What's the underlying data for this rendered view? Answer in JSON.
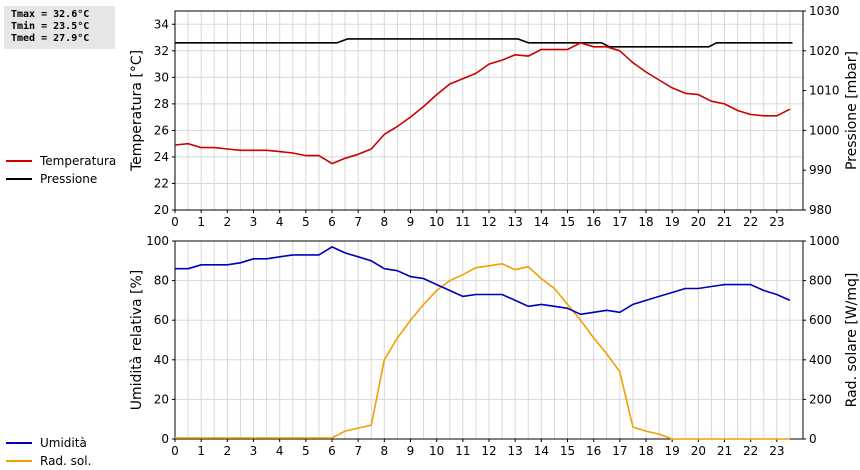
{
  "stats": {
    "tmax": "Tmax = 32.6°C",
    "tmin": "Tmin = 23.5°C",
    "tmed": "Tmed = 27.9°C"
  },
  "legend_top": [
    {
      "label": "Temperatura",
      "color": "#cc0000"
    },
    {
      "label": "Pressione",
      "color": "#000000"
    }
  ],
  "legend_bottom": [
    {
      "label": "Umidità",
      "color": "#0000bb"
    },
    {
      "label": "Rad. sol.",
      "color": "#f0a000"
    }
  ],
  "chart_data": [
    {
      "type": "line",
      "xlabel": "",
      "xlim": [
        0,
        24
      ],
      "x_ticks": [
        0,
        1,
        2,
        3,
        4,
        5,
        6,
        7,
        8,
        9,
        10,
        11,
        12,
        13,
        14,
        15,
        16,
        17,
        18,
        19,
        20,
        21,
        22,
        23
      ],
      "ylabel_left": "Temperatura [°C]",
      "ylim_left": [
        20,
        35
      ],
      "y_ticks_left": [
        20,
        22,
        24,
        26,
        28,
        30,
        32,
        34
      ],
      "ylabel_right": "Pressione [mbar]",
      "ylim_right": [
        980,
        1030
      ],
      "y_ticks_right": [
        980,
        990,
        1000,
        1010,
        1020,
        1030
      ],
      "grid": true,
      "series": [
        {
          "name": "Temperatura",
          "axis": "left",
          "color": "#cc0000",
          "x": [
            0,
            0.5,
            1,
            1.5,
            2,
            2.5,
            3,
            3.5,
            4,
            4.5,
            5,
            5.5,
            6,
            6.5,
            7,
            7.5,
            8,
            8.5,
            9,
            9.5,
            10,
            10.5,
            11,
            11.5,
            12,
            12.5,
            13,
            13.5,
            14,
            14.5,
            15,
            15.5,
            16,
            16.5,
            17,
            17.5,
            18,
            18.5,
            19,
            19.5,
            20,
            20.5,
            21,
            21.5,
            22,
            22.5,
            23,
            23.5
          ],
          "y": [
            24.9,
            25.0,
            24.7,
            24.7,
            24.6,
            24.5,
            24.5,
            24.5,
            24.4,
            24.3,
            24.1,
            24.1,
            23.5,
            23.9,
            24.2,
            24.6,
            25.7,
            26.3,
            27.0,
            27.8,
            28.7,
            29.5,
            29.9,
            30.3,
            31.0,
            31.3,
            31.7,
            31.6,
            32.1,
            32.1,
            32.1,
            32.6,
            32.3,
            32.3,
            32.0,
            31.1,
            30.4,
            29.8,
            29.2,
            28.8,
            28.7,
            28.2,
            28.0,
            27.5,
            27.2,
            27.1,
            27.1,
            27.6
          ]
        },
        {
          "name": "Pressione",
          "axis": "right",
          "color": "#000000",
          "x": [
            0,
            6.2,
            6.6,
            13.1,
            13.5,
            16.3,
            16.6,
            20.4,
            20.7,
            23.6
          ],
          "y": [
            1022,
            1022,
            1023,
            1023,
            1022,
            1022,
            1021,
            1021,
            1022,
            1022
          ]
        }
      ]
    },
    {
      "type": "line",
      "xlabel": "",
      "xlim": [
        0,
        24
      ],
      "x_ticks": [
        0,
        1,
        2,
        3,
        4,
        5,
        6,
        7,
        8,
        9,
        10,
        11,
        12,
        13,
        14,
        15,
        16,
        17,
        18,
        19,
        20,
        21,
        22,
        23
      ],
      "ylabel_left": "Umidità relativa [%]",
      "ylim_left": [
        0,
        100
      ],
      "y_ticks_left": [
        0,
        20,
        40,
        60,
        80,
        100
      ],
      "ylabel_right": "Rad. solare [W/mq]",
      "ylim_right": [
        0,
        1000
      ],
      "y_ticks_right": [
        0,
        200,
        400,
        600,
        800,
        1000
      ],
      "grid": true,
      "series": [
        {
          "name": "Umidità",
          "axis": "left",
          "color": "#0000bb",
          "x": [
            0,
            0.5,
            1,
            1.5,
            2,
            2.5,
            3,
            3.5,
            4,
            4.5,
            5,
            5.5,
            6,
            6.5,
            7,
            7.5,
            8,
            8.5,
            9,
            9.5,
            10,
            10.5,
            11,
            11.5,
            12,
            12.5,
            13,
            13.5,
            14,
            14.5,
            15,
            15.5,
            16,
            16.5,
            17,
            17.5,
            18,
            18.5,
            19,
            19.5,
            20,
            20.5,
            21,
            21.5,
            22,
            22.5,
            23,
            23.5
          ],
          "y": [
            86,
            86,
            88,
            88,
            88,
            89,
            91,
            91,
            92,
            93,
            93,
            93,
            97,
            94,
            92,
            90,
            86,
            85,
            82,
            81,
            78,
            75,
            72,
            73,
            73,
            73,
            70,
            67,
            68,
            67,
            66,
            63,
            64,
            65,
            64,
            68,
            70,
            72,
            74,
            76,
            76,
            77,
            78,
            78,
            78,
            75,
            73,
            70
          ]
        },
        {
          "name": "Rad. sol.",
          "axis": "right",
          "color": "#f0a000",
          "x": [
            0,
            1,
            2,
            3,
            4,
            5,
            6,
            6.5,
            7,
            7.5,
            8,
            8.5,
            9,
            9.5,
            10,
            10.5,
            11,
            11.5,
            12,
            12.5,
            13,
            13.5,
            14,
            14.5,
            15,
            15.5,
            16,
            16.5,
            17,
            17.5,
            18,
            18.5,
            19,
            20,
            21,
            22,
            23,
            23.5
          ],
          "y": [
            5,
            5,
            5,
            5,
            5,
            5,
            5,
            40,
            55,
            70,
            400,
            510,
            600,
            680,
            750,
            800,
            830,
            865,
            875,
            885,
            855,
            870,
            810,
            760,
            680,
            600,
            510,
            430,
            340,
            60,
            40,
            25,
            0,
            0,
            0,
            0,
            0,
            0
          ]
        }
      ]
    }
  ]
}
